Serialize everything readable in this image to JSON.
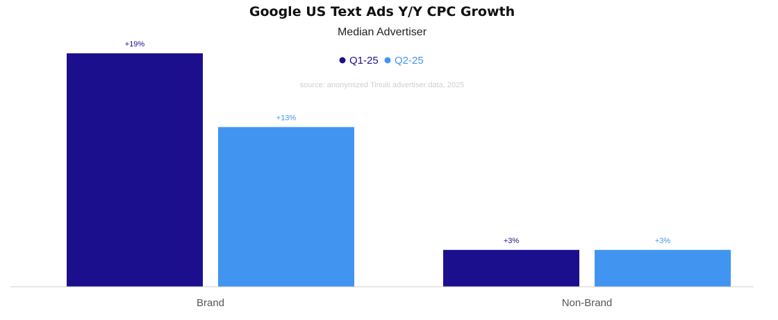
{
  "colors": {
    "q1": "#1c0f8e",
    "q2": "#4195f0",
    "axis": "#cccccc"
  },
  "chart_data": {
    "type": "bar",
    "title": "Google US Text Ads Y/Y CPC Growth",
    "subtitle": "Median Advertiser",
    "source": "source: anonymized Tinuiti advertiser data, 2025",
    "categories": [
      "Brand",
      "Non-Brand"
    ],
    "series": [
      {
        "name": "Q1-25",
        "values": [
          19,
          3
        ],
        "labels": [
          "+19%",
          "+3%"
        ],
        "color": "#1c0f8e"
      },
      {
        "name": "Q2-25",
        "values": [
          13,
          3
        ],
        "labels": [
          "+13%",
          "+3%"
        ],
        "color": "#4195f0"
      }
    ],
    "ylim": [
      0,
      19
    ],
    "legend_position": "top-center",
    "grid": false,
    "xlabel": "",
    "ylabel": ""
  }
}
